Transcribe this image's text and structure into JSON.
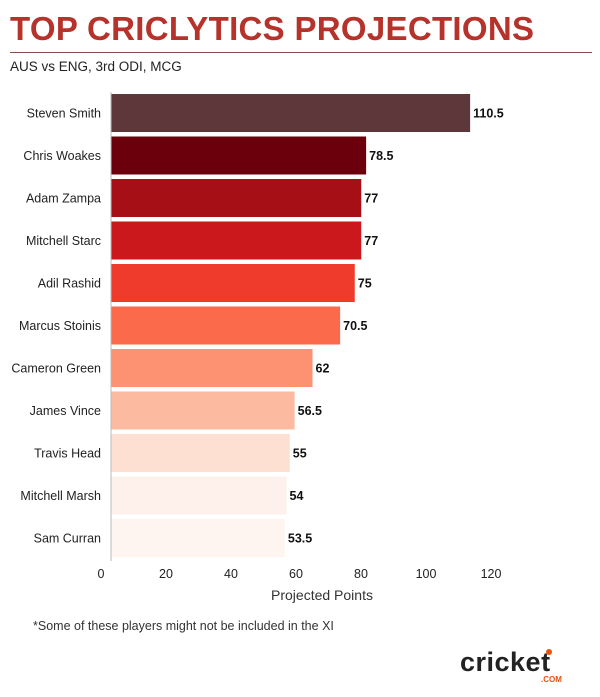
{
  "header": {
    "title": "TOP CRICLYTICS PROJECTIONS",
    "subtitle": "AUS vs ENG, 3rd ODI, MCG"
  },
  "chart_data": {
    "type": "bar",
    "orientation": "horizontal",
    "categories": [
      "Steven Smith",
      "Chris Woakes",
      "Adam Zampa",
      "Mitchell Starc",
      "Adil Rashid",
      "Marcus Stoinis",
      "Cameron Green",
      "James Vince",
      "Travis Head",
      "Mitchell Marsh",
      "Sam Curran"
    ],
    "values": [
      110.5,
      78.5,
      77,
      77,
      75,
      70.5,
      62,
      56.5,
      55,
      54,
      53.5
    ],
    "value_labels": [
      "110.5",
      "78.5",
      "77",
      "77",
      "75",
      "70.5",
      "62",
      "56.5",
      "55",
      "54",
      "53.5"
    ],
    "colors": [
      "#5e373a",
      "#6b000c",
      "#a50f15",
      "#cb181d",
      "#ef3b2c",
      "#fb6a4a",
      "#fc9272",
      "#fcbba1",
      "#fde0d2",
      "#fef0ea",
      "#fff5f0"
    ],
    "xlabel": "Projected Points",
    "xlim": [
      0,
      120
    ],
    "xticks": [
      0,
      20,
      40,
      60,
      80,
      100,
      120
    ],
    "grid": false
  },
  "footnote": "*Some of these players might not be included in the XI",
  "brand": {
    "name": "cricket",
    "suffix": ".COM",
    "accent": "#e8530e"
  }
}
